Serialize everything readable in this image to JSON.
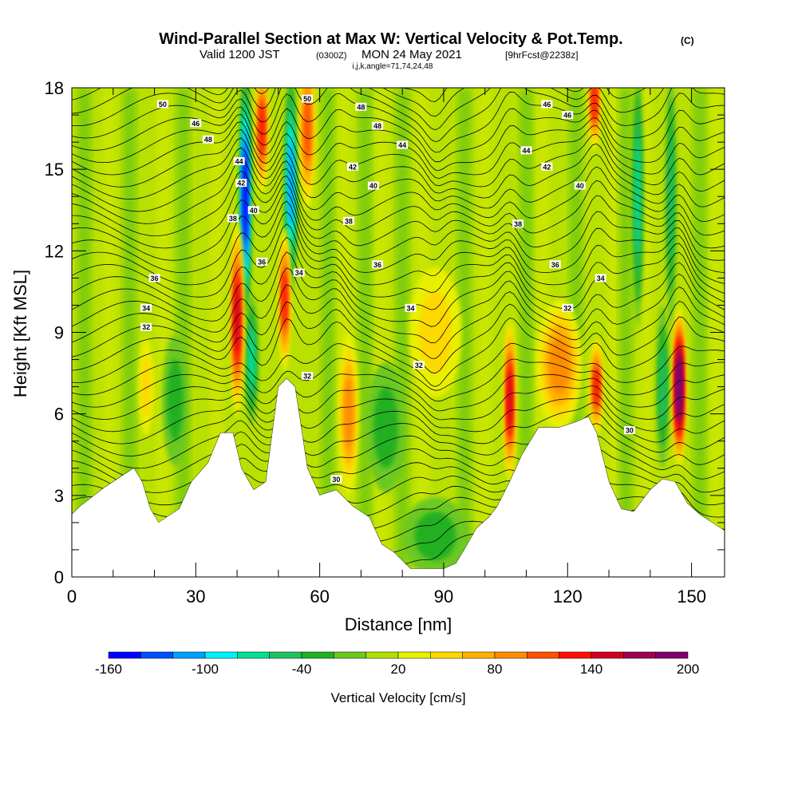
{
  "chart_data": {
    "type": "heatmap",
    "title_main": "Wind-Parallel Section at Max W: Vertical Velocity & Pot.Temp.",
    "title_mark": "(C)",
    "subtitle_a": "Valid 1200 JST",
    "subtitle_b": "(0300Z)",
    "subtitle_c": "MON 24 May 2021",
    "subtitle_d": "[9hrFcst@2238z]",
    "subtitle_line2": "i,j,k,angle=71,74,24,48",
    "xlabel": "Distance [nm]",
    "ylabel": "Height [Kft MSL]",
    "xlim": [
      0,
      158
    ],
    "ylim": [
      0,
      18
    ],
    "x_ticks": [
      "0",
      "30",
      "60",
      "90",
      "120",
      "150"
    ],
    "x_tick_values": [
      0,
      30,
      60,
      90,
      120,
      150
    ],
    "y_ticks": [
      "0",
      "3",
      "6",
      "9",
      "12",
      "15",
      "18"
    ],
    "y_tick_values": [
      0,
      3,
      6,
      9,
      12,
      15,
      18
    ],
    "colorbar": {
      "label": "Vertical Velocity [cm/s]",
      "tick_labels": [
        "-160",
        "-100",
        "-40",
        "20",
        "80",
        "140",
        "200"
      ],
      "tick_values": [
        -160,
        -100,
        -40,
        20,
        80,
        140,
        200
      ],
      "levels": [
        -160,
        -140,
        -120,
        -100,
        -80,
        -60,
        -40,
        -20,
        0,
        20,
        40,
        60,
        80,
        100,
        120,
        140,
        160,
        180,
        200
      ],
      "colors": [
        "#0000ff",
        "#0050ff",
        "#00a0ff",
        "#00f0ff",
        "#00e090",
        "#20c060",
        "#20b020",
        "#6cc820",
        "#b0e000",
        "#e8f000",
        "#ffd800",
        "#ffb000",
        "#ff8c00",
        "#ff5000",
        "#ff1000",
        "#d00020",
        "#a00050",
        "#800070"
      ]
    },
    "terrain_kft": [
      [
        0,
        2.3
      ],
      [
        2,
        2.6
      ],
      [
        8,
        3.3
      ],
      [
        12,
        3.7
      ],
      [
        15,
        4.0
      ],
      [
        17,
        3.5
      ],
      [
        19,
        2.5
      ],
      [
        21,
        2.0
      ],
      [
        26,
        2.5
      ],
      [
        29,
        3.5
      ],
      [
        33,
        4.2
      ],
      [
        36,
        5.3
      ],
      [
        39,
        5.3
      ],
      [
        41,
        4.0
      ],
      [
        44,
        3.2
      ],
      [
        47,
        3.5
      ],
      [
        50,
        7.0
      ],
      [
        52,
        7.3
      ],
      [
        54,
        7.0
      ],
      [
        57,
        4.0
      ],
      [
        60,
        3.0
      ],
      [
        64,
        3.2
      ],
      [
        68,
        2.6
      ],
      [
        72,
        2.2
      ],
      [
        75,
        1.2
      ],
      [
        78,
        0.9
      ],
      [
        80,
        0.6
      ],
      [
        82,
        0.3
      ],
      [
        86,
        0.3
      ],
      [
        90,
        0.3
      ],
      [
        93,
        0.5
      ],
      [
        95,
        1.0
      ],
      [
        98,
        1.8
      ],
      [
        101,
        2.2
      ],
      [
        103,
        2.6
      ],
      [
        106,
        3.5
      ],
      [
        109,
        4.5
      ],
      [
        113,
        5.5
      ],
      [
        118,
        5.5
      ],
      [
        122,
        5.7
      ],
      [
        125,
        5.9
      ],
      [
        127,
        5.3
      ],
      [
        130,
        3.5
      ],
      [
        133,
        2.5
      ],
      [
        136,
        2.4
      ],
      [
        140,
        3.2
      ],
      [
        143,
        3.6
      ],
      [
        146,
        3.5
      ],
      [
        149,
        2.7
      ],
      [
        152,
        2.3
      ],
      [
        155,
        2.0
      ],
      [
        158,
        1.7
      ]
    ],
    "updrafts": [
      {
        "x": 40,
        "y": 9.5,
        "sx": 1.0,
        "sy": 3.0,
        "w": 150
      },
      {
        "x": 46,
        "y": 16.5,
        "sx": 1.0,
        "sy": 2.0,
        "w": 130
      },
      {
        "x": 51.5,
        "y": 10.2,
        "sx": 0.9,
        "sy": 2.2,
        "w": 130
      },
      {
        "x": 57,
        "y": 16.5,
        "sx": 1.2,
        "sy": 2.5,
        "w": 110
      },
      {
        "x": 67,
        "y": 6.0,
        "sx": 1.5,
        "sy": 2.5,
        "w": 80
      },
      {
        "x": 106,
        "y": 6.5,
        "sx": 0.9,
        "sy": 2.5,
        "w": 140
      },
      {
        "x": 118,
        "y": 7.8,
        "sx": 3.5,
        "sy": 2.0,
        "w": 90
      },
      {
        "x": 127,
        "y": 7.0,
        "sx": 1.0,
        "sy": 1.5,
        "w": 120
      },
      {
        "x": 147,
        "y": 7.0,
        "sx": 1.0,
        "sy": 2.5,
        "w": 200
      },
      {
        "x": 126.5,
        "y": 17.5,
        "sx": 0.9,
        "sy": 1.5,
        "w": 120
      },
      {
        "x": 18,
        "y": 7.0,
        "sx": 1.2,
        "sy": 1.5,
        "w": 50
      },
      {
        "x": 88,
        "y": 9.0,
        "sx": 4.0,
        "sy": 2.0,
        "w": 40
      }
    ],
    "downdrafts": [
      {
        "x": 42,
        "y": 14.0,
        "sx": 0.9,
        "sy": 4.0,
        "w": -160
      },
      {
        "x": 53,
        "y": 14.5,
        "sx": 1.0,
        "sy": 3.5,
        "w": -120
      },
      {
        "x": 43.5,
        "y": 8.0,
        "sx": 1.0,
        "sy": 2.0,
        "w": -80
      },
      {
        "x": 137,
        "y": 14.0,
        "sx": 0.8,
        "sy": 4.0,
        "w": -80
      },
      {
        "x": 145,
        "y": 14.0,
        "sx": 0.8,
        "sy": 4.0,
        "w": -70
      },
      {
        "x": 143,
        "y": 7.0,
        "sx": 1.0,
        "sy": 2.5,
        "w": -60
      },
      {
        "x": 88,
        "y": 1.5,
        "sx": 5.0,
        "sy": 1.2,
        "w": -40
      },
      {
        "x": 25,
        "y": 6.5,
        "sx": 2.0,
        "sy": 2.0,
        "w": -40
      },
      {
        "x": 76,
        "y": 5.5,
        "sx": 3.0,
        "sy": 2.0,
        "w": -40
      }
    ],
    "contour_labels": [
      {
        "x": 22,
        "y": 17.4,
        "text": "50"
      },
      {
        "x": 30,
        "y": 16.7,
        "text": "46"
      },
      {
        "x": 33,
        "y": 16.1,
        "text": "48"
      },
      {
        "x": 40.5,
        "y": 15.3,
        "text": "44"
      },
      {
        "x": 41,
        "y": 14.5,
        "text": "42"
      },
      {
        "x": 44,
        "y": 13.5,
        "text": "40"
      },
      {
        "x": 39,
        "y": 13.2,
        "text": "38"
      },
      {
        "x": 46,
        "y": 11.6,
        "text": "36"
      },
      {
        "x": 55,
        "y": 11.2,
        "text": "34"
      },
      {
        "x": 57,
        "y": 17.6,
        "text": "50"
      },
      {
        "x": 70,
        "y": 17.3,
        "text": "48"
      },
      {
        "x": 74,
        "y": 16.6,
        "text": "48"
      },
      {
        "x": 80,
        "y": 15.9,
        "text": "44"
      },
      {
        "x": 68,
        "y": 15.1,
        "text": "42"
      },
      {
        "x": 73,
        "y": 14.4,
        "text": "40"
      },
      {
        "x": 67,
        "y": 13.1,
        "text": "38"
      },
      {
        "x": 74,
        "y": 11.5,
        "text": "36"
      },
      {
        "x": 82,
        "y": 9.9,
        "text": "34"
      },
      {
        "x": 84,
        "y": 7.8,
        "text": "32"
      },
      {
        "x": 57,
        "y": 7.4,
        "text": "32"
      },
      {
        "x": 64,
        "y": 3.6,
        "text": "30"
      },
      {
        "x": 20,
        "y": 11.0,
        "text": "36"
      },
      {
        "x": 18,
        "y": 9.9,
        "text": "34"
      },
      {
        "x": 18,
        "y": 9.2,
        "text": "32"
      },
      {
        "x": 110,
        "y": 15.7,
        "text": "44"
      },
      {
        "x": 115,
        "y": 17.4,
        "text": "46"
      },
      {
        "x": 120,
        "y": 17.0,
        "text": "46"
      },
      {
        "x": 115,
        "y": 15.1,
        "text": "42"
      },
      {
        "x": 123,
        "y": 14.4,
        "text": "40"
      },
      {
        "x": 108,
        "y": 13.0,
        "text": "38"
      },
      {
        "x": 117,
        "y": 11.5,
        "text": "36"
      },
      {
        "x": 128,
        "y": 11.0,
        "text": "34"
      },
      {
        "x": 120,
        "y": 9.9,
        "text": "32"
      },
      {
        "x": 135,
        "y": 5.4,
        "text": "30"
      }
    ]
  }
}
